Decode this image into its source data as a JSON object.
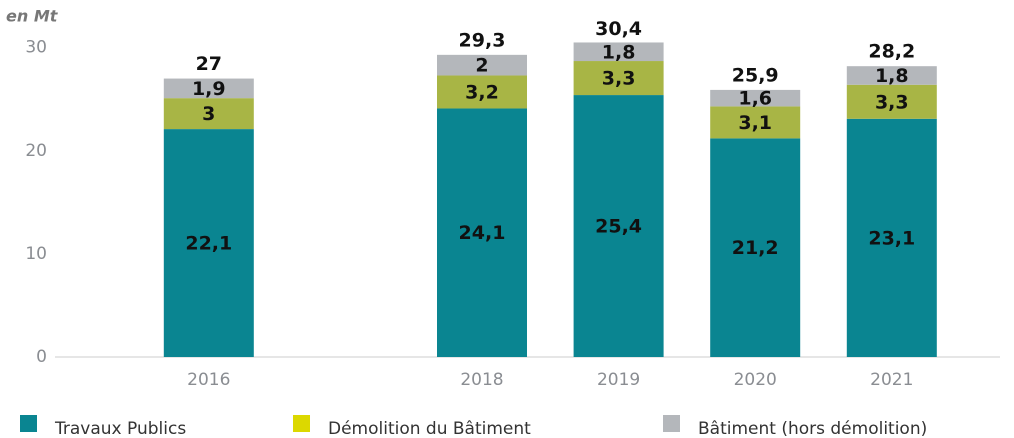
{
  "chart_data": {
    "type": "stacked-bar",
    "y_unit_label": "en Mt",
    "categories": [
      "2016",
      null,
      "2018",
      "2019",
      "2020",
      "2021"
    ],
    "series": [
      {
        "name": "Travaux Publics",
        "color": "#0a8591",
        "legend_color": "#0a8591",
        "values": [
          22.1,
          null,
          24.1,
          25.4,
          21.2,
          23.1
        ],
        "value_labels": [
          "22,1",
          null,
          "24,1",
          "25,4",
          "21,2",
          "23,1"
        ]
      },
      {
        "name": "Démolition du Bâtiment",
        "color": "#a8b545",
        "legend_color": "#dcd800",
        "values": [
          3,
          null,
          3.2,
          3.3,
          3.1,
          3.3
        ],
        "value_labels": [
          "3",
          null,
          "3,2",
          "3,3",
          "3,1",
          "3,3"
        ]
      },
      {
        "name": "Bâtiment (hors démolition)",
        "color": "#b4b7bb",
        "legend_color": "#b4b7bb",
        "values": [
          1.9,
          null,
          2,
          1.8,
          1.6,
          1.8
        ],
        "value_labels": [
          "1,9",
          null,
          "2",
          "1,8",
          "1,6",
          "1,8"
        ]
      }
    ],
    "totals": [
      27,
      null,
      29.3,
      30.4,
      25.9,
      28.2
    ],
    "total_labels": [
      "27",
      null,
      "29,3",
      "30,4",
      "25,9",
      "28,2"
    ],
    "ylim": [
      0,
      32
    ],
    "yticks": [
      0,
      10,
      20,
      30
    ],
    "grid": false
  }
}
